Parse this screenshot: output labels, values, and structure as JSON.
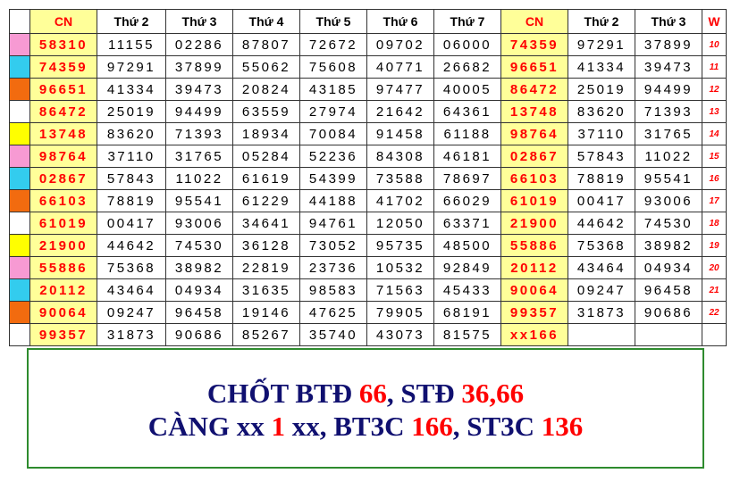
{
  "table": {
    "header": [
      "CN",
      "Thứ 2",
      "Thứ 3",
      "Thứ 4",
      "Thứ 5",
      "Thứ 6",
      "Thứ 7",
      "CN",
      "Thứ 2",
      "Thứ 3",
      "W"
    ],
    "rows": [
      {
        "marker": "#f79ad3",
        "cells": [
          "58310",
          "11155",
          "02286",
          "87807",
          "72672",
          "09702",
          "06000",
          "74359",
          "97291",
          "37899",
          "10"
        ]
      },
      {
        "marker": "#33ccee",
        "cells": [
          "74359",
          "97291",
          "37899",
          "55062",
          "75608",
          "40771",
          "26682",
          "96651",
          "41334",
          "39473",
          "11"
        ]
      },
      {
        "marker": "#f26b0f",
        "cells": [
          "96651",
          "41334",
          "39473",
          "20824",
          "43185",
          "97477",
          "40005",
          "86472",
          "25019",
          "94499",
          "12"
        ]
      },
      {
        "marker": "#ffffff",
        "cells": [
          "86472",
          "25019",
          "94499",
          "63559",
          "27974",
          "21642",
          "64361",
          "13748",
          "83620",
          "71393",
          "13"
        ]
      },
      {
        "marker": "#ffff00",
        "cells": [
          "13748",
          "83620",
          "71393",
          "18934",
          "70084",
          "91458",
          "61188",
          "98764",
          "37110",
          "31765",
          "14"
        ]
      },
      {
        "marker": "#f79ad3",
        "cells": [
          "98764",
          "37110",
          "31765",
          "05284",
          "52236",
          "84308",
          "46181",
          "02867",
          "57843",
          "11022",
          "15"
        ]
      },
      {
        "marker": "#33ccee",
        "cells": [
          "02867",
          "57843",
          "11022",
          "61619",
          "54399",
          "73588",
          "78697",
          "66103",
          "78819",
          "95541",
          "16"
        ]
      },
      {
        "marker": "#f26b0f",
        "cells": [
          "66103",
          "78819",
          "95541",
          "61229",
          "44188",
          "41702",
          "66029",
          "61019",
          "00417",
          "93006",
          "17"
        ]
      },
      {
        "marker": "#ffffff",
        "cells": [
          "61019",
          "00417",
          "93006",
          "34641",
          "94761",
          "12050",
          "63371",
          "21900",
          "44642",
          "74530",
          "18"
        ]
      },
      {
        "marker": "#ffff00",
        "cells": [
          "21900",
          "44642",
          "74530",
          "36128",
          "73052",
          "95735",
          "48500",
          "55886",
          "75368",
          "38982",
          "19"
        ]
      },
      {
        "marker": "#f79ad3",
        "cells": [
          "55886",
          "75368",
          "38982",
          "22819",
          "23736",
          "10532",
          "92849",
          "20112",
          "43464",
          "04934",
          "20"
        ]
      },
      {
        "marker": "#33ccee",
        "cells": [
          "20112",
          "43464",
          "04934",
          "31635",
          "98583",
          "71563",
          "45433",
          "90064",
          "09247",
          "96458",
          "21"
        ]
      },
      {
        "marker": "#f26b0f",
        "cells": [
          "90064",
          "09247",
          "96458",
          "19146",
          "47625",
          "79905",
          "68191",
          "99357",
          "31873",
          "90686",
          "22"
        ]
      },
      {
        "marker": "#ffffff",
        "cells": [
          "99357",
          "31873",
          "90686",
          "85267",
          "35740",
          "43073",
          "81575",
          "xx166"
        ]
      }
    ]
  },
  "note": {
    "lines": [
      [
        "CHỐT BTĐ ",
        "66",
        ", STĐ ",
        "36,66"
      ],
      [
        "CÀNG xx ",
        "1",
        " xx, BT3C ",
        "166",
        ", ST3C ",
        "136"
      ]
    ]
  }
}
